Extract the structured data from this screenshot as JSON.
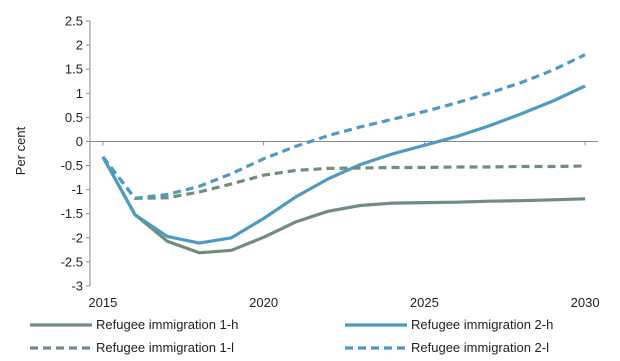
{
  "chart_data": {
    "type": "line",
    "title": "",
    "xlabel": "",
    "ylabel": "Per cent",
    "xlim": [
      2014.6,
      2030.4
    ],
    "ylim": [
      -3,
      2.5
    ],
    "x_ticks": [
      2015,
      2020,
      2025,
      2030
    ],
    "y_ticks": [
      2.5,
      2,
      1.5,
      1,
      0.5,
      0,
      -0.5,
      -1,
      -1.5,
      -2,
      -2.5,
      -3
    ],
    "grid": false,
    "legend_position": "bottom",
    "series": [
      {
        "name": "Refugee immigration 1-h",
        "color": "#6f8f7c",
        "dashed": false,
        "x": [
          2015,
          2016,
          2017,
          2018,
          2019,
          2020,
          2021,
          2022,
          2023,
          2024,
          2025,
          2026,
          2027,
          2028,
          2029,
          2030
        ],
        "values": [
          -0.32,
          -1.52,
          -2.07,
          -2.31,
          -2.26,
          -1.99,
          -1.67,
          -1.45,
          -1.33,
          -1.28,
          -1.27,
          -1.26,
          -1.24,
          -1.23,
          -1.21,
          -1.19
        ]
      },
      {
        "name": "Refugee immigration 2-h",
        "color": "#4e9ac0",
        "dashed": false,
        "x": [
          2015,
          2016,
          2017,
          2018,
          2019,
          2020,
          2021,
          2022,
          2023,
          2024,
          2025,
          2026,
          2027,
          2028,
          2029,
          2030
        ],
        "values": [
          -0.32,
          -1.52,
          -1.97,
          -2.11,
          -2.0,
          -1.6,
          -1.15,
          -0.78,
          -0.48,
          -0.26,
          -0.08,
          0.1,
          0.32,
          0.57,
          0.84,
          1.15
        ]
      },
      {
        "name": "Refugee immigration 1-l",
        "color": "#6f8f7c",
        "dashed": true,
        "x": [
          2015,
          2016,
          2017,
          2018,
          2019,
          2020,
          2021,
          2022,
          2023,
          2024,
          2025,
          2026,
          2027,
          2028,
          2029,
          2030
        ],
        "values": [
          -0.32,
          -1.18,
          -1.17,
          -1.05,
          -0.88,
          -0.7,
          -0.6,
          -0.56,
          -0.55,
          -0.54,
          -0.54,
          -0.53,
          -0.53,
          -0.52,
          -0.52,
          -0.51
        ]
      },
      {
        "name": "Refugee immigration 2-l",
        "color": "#4e9ac0",
        "dashed": true,
        "x": [
          2015,
          2016,
          2017,
          2018,
          2019,
          2020,
          2021,
          2022,
          2023,
          2024,
          2025,
          2026,
          2027,
          2028,
          2029,
          2030
        ],
        "values": [
          -0.32,
          -1.18,
          -1.1,
          -0.93,
          -0.67,
          -0.36,
          -0.1,
          0.12,
          0.3,
          0.46,
          0.62,
          0.8,
          1.0,
          1.22,
          1.48,
          1.8
        ]
      }
    ]
  }
}
